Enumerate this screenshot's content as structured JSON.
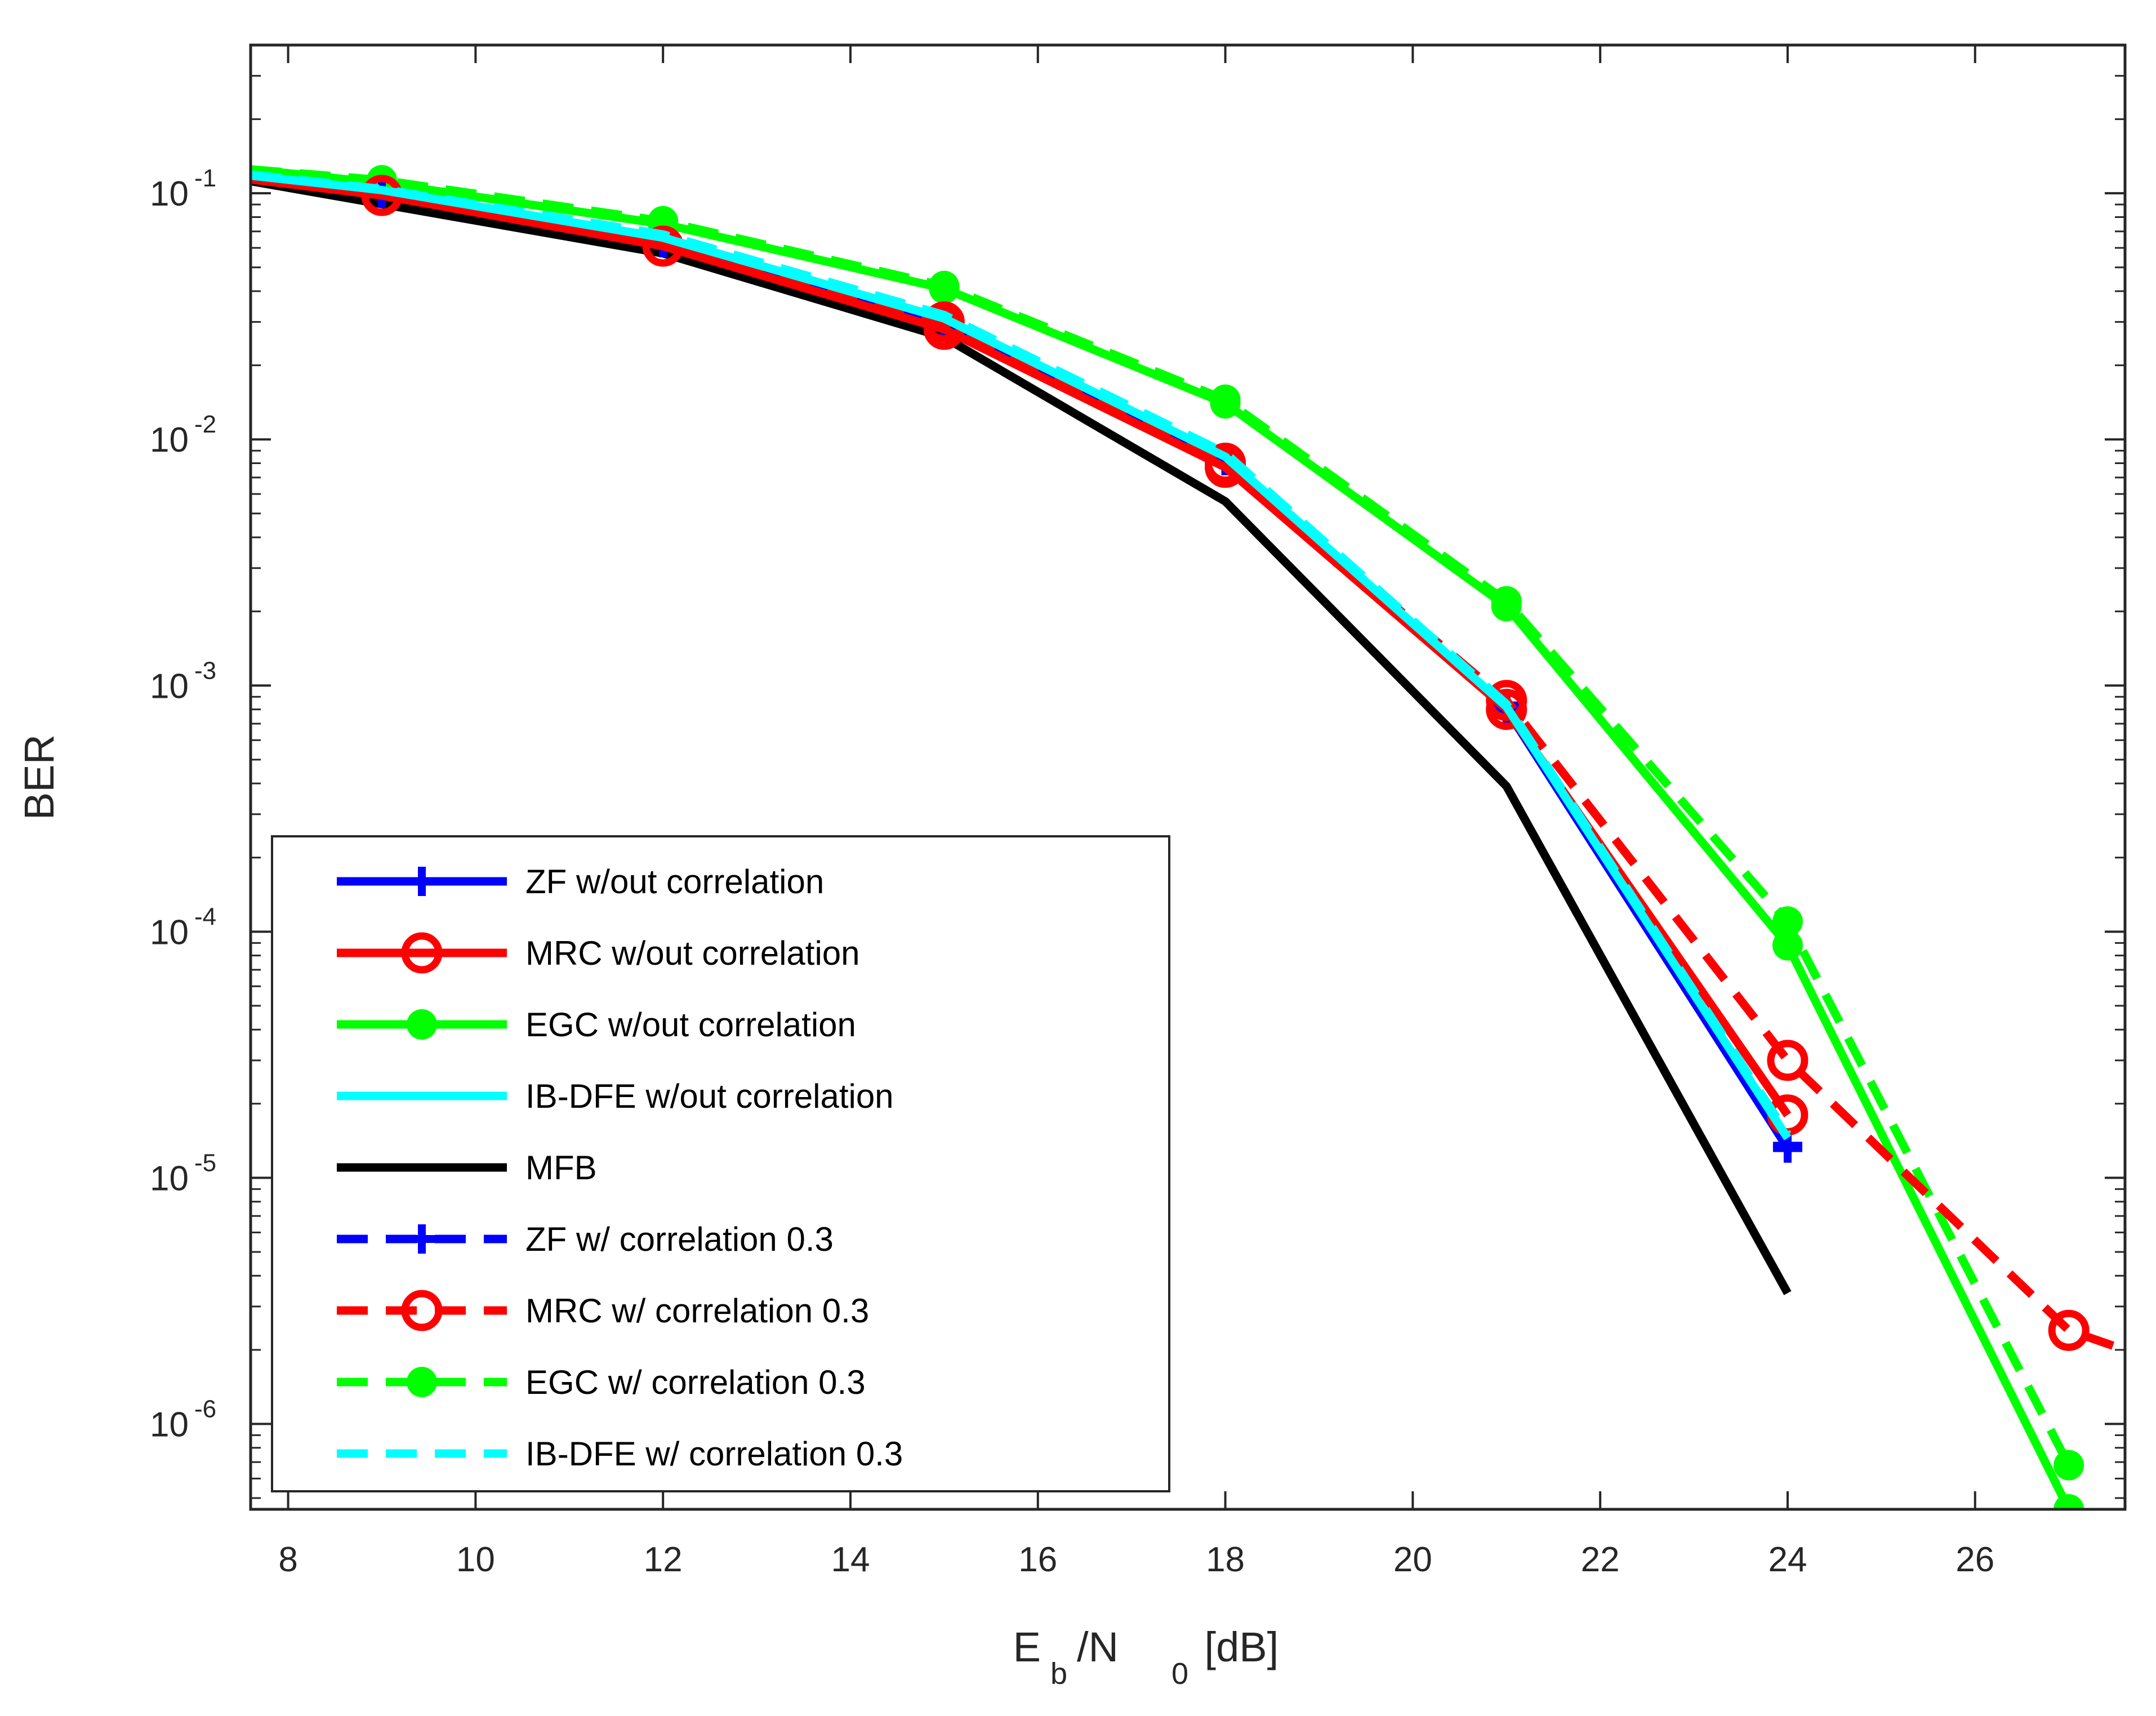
{
  "chart_data": {
    "type": "line",
    "title": "",
    "xlabel": {
      "main": "E",
      "sub1": "b",
      "mid": "/N",
      "sub2": "0",
      "unit": " [dB]"
    },
    "ylabel": "BER",
    "xlim": [
      7.6,
      27.6
    ],
    "ylim": [
      4.5e-07,
      0.4
    ],
    "yscale": "log",
    "grid": false,
    "legend_position": "bottom-left",
    "xticks": [
      8,
      10,
      12,
      14,
      16,
      18,
      20,
      22,
      24,
      26
    ],
    "yticks": [
      {
        "value": 0.1,
        "base": "10",
        "exp": "-1"
      },
      {
        "value": 0.01,
        "base": "10",
        "exp": "-2"
      },
      {
        "value": 0.001,
        "base": "10",
        "exp": "-3"
      },
      {
        "value": 0.0001,
        "base": "10",
        "exp": "-4"
      },
      {
        "value": 1e-05,
        "base": "10",
        "exp": "-5"
      },
      {
        "value": 1e-06,
        "base": "10",
        "exp": "-6"
      }
    ],
    "series": [
      {
        "name": "MFB",
        "color": "#000000",
        "dash": "solid",
        "marker": "none",
        "x": [
          7.6,
          12,
          15,
          18,
          21,
          24
        ],
        "y": [
          0.112,
          0.057,
          0.026,
          0.0056,
          0.00039,
          3.4e-06
        ]
      },
      {
        "name": "EGC w/out correlation",
        "color": "#00ff00",
        "dash": "solid",
        "marker": "dot",
        "x": [
          7.6,
          9,
          12,
          15,
          18,
          21,
          24,
          27
        ],
        "y": [
          0.125,
          0.11,
          0.075,
          0.041,
          0.014,
          0.0021,
          8.8e-05,
          4.5e-07
        ]
      },
      {
        "name": "EGC w/ correlation 0.3",
        "color": "#00ff00",
        "dash": "dashed",
        "marker": "dot",
        "x": [
          7.6,
          9,
          12,
          15,
          18,
          21,
          24,
          27
        ],
        "y": [
          0.125,
          0.113,
          0.077,
          0.042,
          0.0145,
          0.0022,
          0.00011,
          6.8e-07
        ]
      },
      {
        "name": "ZF w/out correlation",
        "color": "#0000ff",
        "dash": "solid",
        "marker": "plus",
        "x": [
          7.6,
          9,
          12,
          15,
          18,
          21,
          24
        ],
        "y": [
          0.115,
          0.1,
          0.063,
          0.03,
          0.0082,
          0.0008,
          1.32e-05
        ]
      },
      {
        "name": "ZF w/ correlation 0.3",
        "color": "#0000ff",
        "dash": "dashed",
        "marker": "plus",
        "x": [
          7.6,
          9,
          12,
          15,
          18,
          21,
          24
        ],
        "y": [
          0.115,
          0.1,
          0.063,
          0.03,
          0.0084,
          0.00083,
          1.35e-05
        ]
      },
      {
        "name": "MRC w/out correlation",
        "color": "#ff0000",
        "dash": "solid",
        "marker": "circle",
        "x": [
          7.6,
          9,
          12,
          15,
          18,
          21,
          24
        ],
        "y": [
          0.114,
          0.098,
          0.061,
          0.028,
          0.0077,
          0.0008,
          1.8e-05
        ]
      },
      {
        "name": "MRC w/ correlation 0.3",
        "color": "#ff0000",
        "dash": "dashed",
        "marker": "circle",
        "x": [
          7.6,
          9,
          12,
          15,
          18,
          21,
          24,
          27,
          27.6
        ],
        "y": [
          0.114,
          0.098,
          0.061,
          0.03,
          0.008,
          0.00087,
          3e-05,
          2.4e-06,
          2e-06
        ]
      },
      {
        "name": "IB-DFE w/out correlation",
        "color": "#00ffff",
        "dash": "solid",
        "marker": "none",
        "x": [
          7.6,
          9,
          12,
          15,
          18,
          21,
          24
        ],
        "y": [
          0.118,
          0.103,
          0.066,
          0.031,
          0.0085,
          0.00082,
          1.45e-05
        ]
      },
      {
        "name": "IB-DFE w/ correlation 0.3",
        "color": "#00ffff",
        "dash": "dashed",
        "marker": "none",
        "x": [
          7.6,
          9,
          12,
          15,
          18,
          21,
          24
        ],
        "y": [
          0.119,
          0.104,
          0.068,
          0.032,
          0.0088,
          0.00084,
          1.5e-05
        ]
      }
    ],
    "legend": [
      {
        "label": "ZF w/out correlation",
        "color": "#0000ff",
        "dash": "solid",
        "marker": "plus"
      },
      {
        "label": "MRC w/out correlation",
        "color": "#ff0000",
        "dash": "solid",
        "marker": "circle"
      },
      {
        "label": "EGC w/out correlation",
        "color": "#00ff00",
        "dash": "solid",
        "marker": "dot"
      },
      {
        "label": "IB-DFE w/out correlation",
        "color": "#00ffff",
        "dash": "solid",
        "marker": "none"
      },
      {
        "label": "MFB",
        "color": "#000000",
        "dash": "solid",
        "marker": "none"
      },
      {
        "label": "ZF w/ correlation 0.3",
        "color": "#0000ff",
        "dash": "dashed",
        "marker": "plus"
      },
      {
        "label": "MRC w/ correlation 0.3",
        "color": "#ff0000",
        "dash": "dashed",
        "marker": "circle"
      },
      {
        "label": "EGC w/ correlation 0.3",
        "color": "#00ff00",
        "dash": "dashed",
        "marker": "dot"
      },
      {
        "label": "IB-DFE w/ correlation 0.3",
        "color": "#00ffff",
        "dash": "dashed",
        "marker": "none"
      }
    ]
  }
}
